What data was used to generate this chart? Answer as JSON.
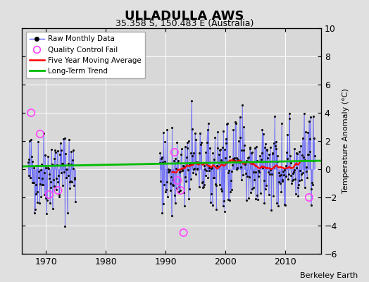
{
  "title": "ULLADULLA AWS",
  "subtitle": "35.358 S, 150.483 E (Australia)",
  "ylabel": "Temperature Anomaly (°C)",
  "credit": "Berkeley Earth",
  "ylim": [
    -6,
    10
  ],
  "xlim": [
    1966,
    2016
  ],
  "yticks": [
    -6,
    -4,
    -2,
    0,
    2,
    4,
    6,
    8,
    10
  ],
  "xticks": [
    1970,
    1980,
    1990,
    2000,
    2010
  ],
  "fig_background": "#e0e0e0",
  "plot_background": "#d8d8d8",
  "line_color": "#5555ff",
  "line_alpha": 0.6,
  "dot_color": "#111111",
  "ma_color": "#ff0000",
  "trend_color": "#00bb00",
  "qc_color": "#ff44ff",
  "seg1_start": 1967,
  "seg1_end": 1974,
  "seg2_start": 1989,
  "seg2_end": 2014,
  "seed1": 42,
  "seed2": 77
}
